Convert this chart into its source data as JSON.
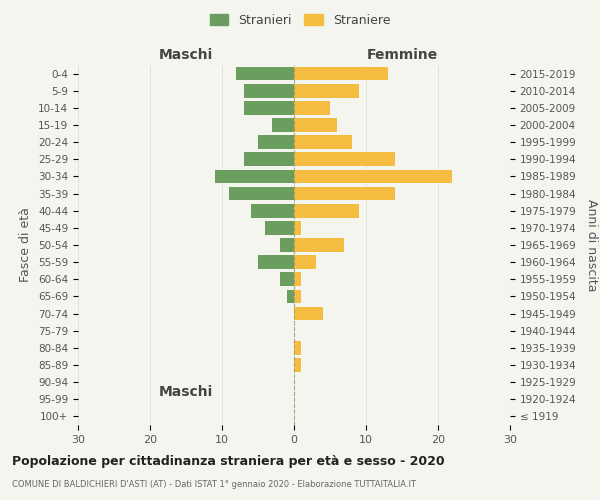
{
  "age_groups": [
    "100+",
    "95-99",
    "90-94",
    "85-89",
    "80-84",
    "75-79",
    "70-74",
    "65-69",
    "60-64",
    "55-59",
    "50-54",
    "45-49",
    "40-44",
    "35-39",
    "30-34",
    "25-29",
    "20-24",
    "15-19",
    "10-14",
    "5-9",
    "0-4"
  ],
  "birth_years": [
    "≤ 1919",
    "1920-1924",
    "1925-1929",
    "1930-1934",
    "1935-1939",
    "1940-1944",
    "1945-1949",
    "1950-1954",
    "1955-1959",
    "1960-1964",
    "1965-1969",
    "1970-1974",
    "1975-1979",
    "1980-1984",
    "1985-1989",
    "1990-1994",
    "1995-1999",
    "2000-2004",
    "2005-2009",
    "2010-2014",
    "2015-2019"
  ],
  "males": [
    0,
    0,
    0,
    0,
    0,
    0,
    0,
    1,
    2,
    5,
    2,
    4,
    6,
    9,
    11,
    7,
    5,
    3,
    7,
    7,
    8
  ],
  "females": [
    0,
    0,
    0,
    1,
    1,
    0,
    4,
    1,
    1,
    3,
    7,
    1,
    9,
    14,
    22,
    14,
    8,
    6,
    5,
    9,
    13
  ],
  "male_color": "#6b9e5e",
  "female_color": "#f5bc42",
  "background_color": "#f5f5f0",
  "grid_color": "#cccccc",
  "title": "Popolazione per cittadinanza straniera per età e sesso - 2020",
  "subtitle": "COMUNE DI BALDICHIERI D'ASTI (AT) - Dati ISTAT 1° gennaio 2020 - Elaborazione TUTTAITALIA.IT",
  "ylabel_left": "Fasce di età",
  "ylabel_right": "Anni di nascita",
  "header_left": "Maschi",
  "header_right": "Femmine",
  "legend_male": "Stranieri",
  "legend_female": "Straniere",
  "xlim": 30,
  "bar_height": 0.8
}
